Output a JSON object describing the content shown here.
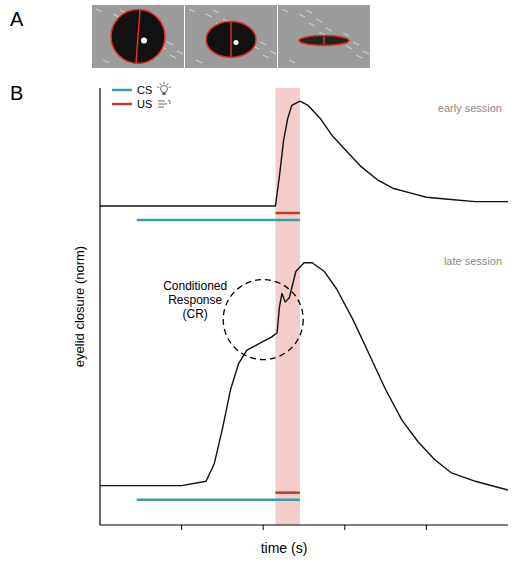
{
  "panel_labels": [
    "A",
    "B"
  ],
  "chart_data": {
    "type": "line",
    "x_label": "time (s)",
    "y_label": "eyelid closure (norm)",
    "xlim": [
      0,
      5
    ],
    "ylim": [
      0,
      1
    ],
    "xticks": [
      1,
      2,
      3,
      4
    ],
    "tick_labels": false,
    "legend": "upper left",
    "series": [
      {
        "name": "early session",
        "color": "#111111",
        "x": [
          0,
          1,
          2,
          2.15,
          2.2,
          2.25,
          2.3,
          2.35,
          2.45,
          2.55,
          2.7,
          2.85,
          3.0,
          3.2,
          3.4,
          3.6,
          3.8,
          4.0,
          4.3,
          4.6,
          5.0
        ],
        "values": [
          0.73,
          0.73,
          0.73,
          0.73,
          0.8,
          0.88,
          0.93,
          0.96,
          0.97,
          0.96,
          0.93,
          0.89,
          0.86,
          0.82,
          0.79,
          0.77,
          0.76,
          0.75,
          0.745,
          0.74,
          0.74
        ]
      },
      {
        "name": "late session",
        "color": "#111111",
        "x": [
          0,
          1.0,
          1.3,
          1.4,
          1.5,
          1.6,
          1.7,
          1.8,
          1.9,
          2.0,
          2.1,
          2.17,
          2.2,
          2.23,
          2.27,
          2.32,
          2.4,
          2.5,
          2.6,
          2.75,
          2.9,
          3.1,
          3.3,
          3.5,
          3.7,
          3.9,
          4.1,
          4.3,
          4.6,
          5.0
        ],
        "values": [
          0.09,
          0.09,
          0.1,
          0.14,
          0.22,
          0.31,
          0.37,
          0.4,
          0.41,
          0.42,
          0.43,
          0.44,
          0.5,
          0.53,
          0.51,
          0.52,
          0.58,
          0.6,
          0.6,
          0.58,
          0.54,
          0.47,
          0.39,
          0.31,
          0.24,
          0.19,
          0.15,
          0.12,
          0.1,
          0.08
        ]
      }
    ],
    "stimuli": [
      {
        "name": "CS",
        "color": "#3a9ea5",
        "start": 0.45,
        "end": 2.45
      },
      {
        "name": "US",
        "color": "#c0392b",
        "start": 2.15,
        "end": 2.45
      }
    ],
    "annotations": [
      "Conditioned Response (CR)"
    ]
  }
}
